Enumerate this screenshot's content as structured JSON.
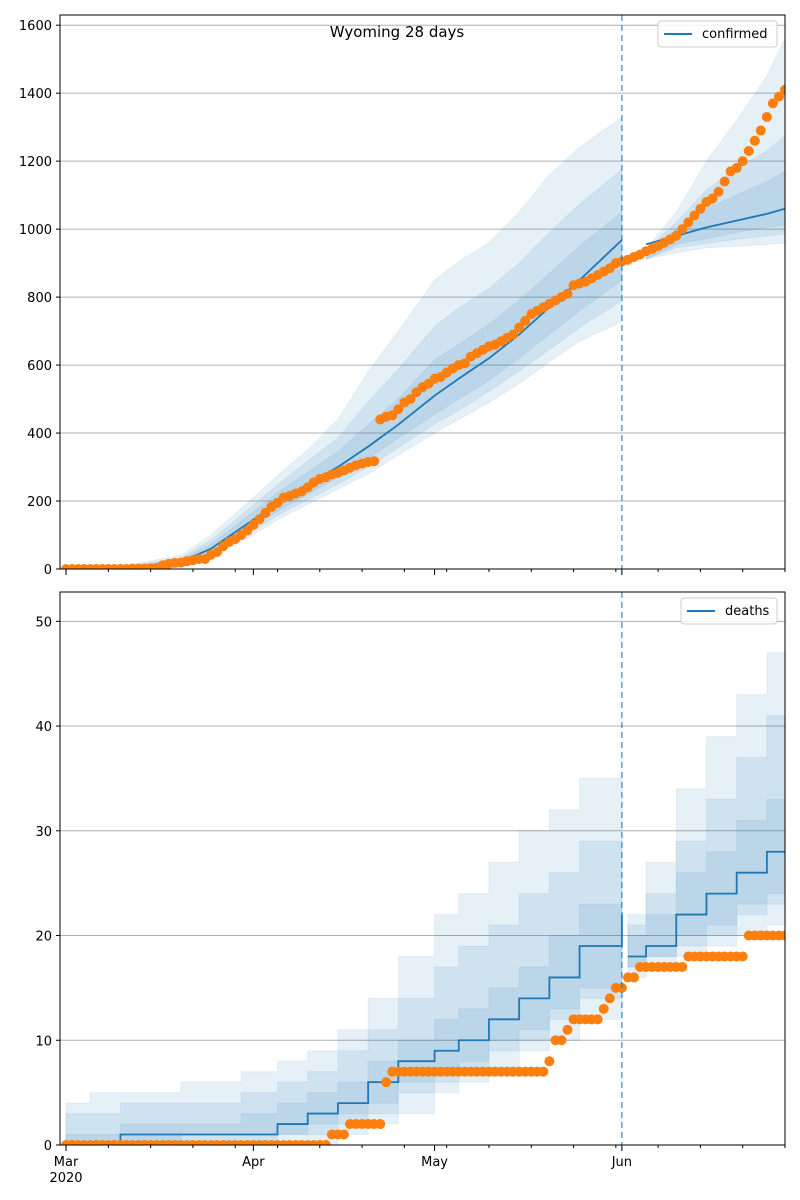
{
  "chart_data": [
    {
      "type": "line",
      "title": "Wyoming 28 days",
      "legend": "confirmed",
      "legend_position": "top-right",
      "grid": "horizontal",
      "x_range": [
        "2020-02-29",
        "2020-06-28"
      ],
      "ylim": [
        0,
        1630
      ],
      "yticks": [
        0,
        200,
        400,
        600,
        800,
        1000,
        1200,
        1400,
        1600
      ],
      "vline": "2020-06-01",
      "colors": {
        "model": "#1f77b4",
        "observed": "#ff7f0e",
        "vline": "#1f77b4"
      },
      "model": {
        "dates": [
          "2020-03-01",
          "2020-03-10",
          "2020-03-20",
          "2020-03-25",
          "2020-04-01",
          "2020-04-05",
          "2020-04-10",
          "2020-04-15",
          "2020-04-20",
          "2020-04-25",
          "2020-05-01",
          "2020-05-05",
          "2020-05-10",
          "2020-05-15",
          "2020-05-20",
          "2020-05-25",
          "2020-06-01",
          "2020-06-05",
          "2020-06-10",
          "2020-06-15",
          "2020-06-20",
          "2020-06-25",
          "2020-06-29"
        ],
        "median": [
          0,
          2,
          20,
          60,
          145,
          195,
          250,
          300,
          360,
          425,
          510,
          560,
          620,
          690,
          770,
          850,
          968,
          955,
          980,
          1005,
          1025,
          1045,
          1065
        ],
        "bands": [
          {
            "lower": [
              0,
              0,
              5,
              35,
              100,
              145,
              190,
              235,
              280,
              335,
              400,
              440,
              490,
              545,
              610,
              670,
              728,
              912,
              930,
              945,
              950,
              955,
              960
            ],
            "upper": [
              3,
              8,
              40,
              100,
              210,
              275,
              350,
              440,
              580,
              700,
              850,
              905,
              960,
              1050,
              1160,
              1240,
              1330,
              940,
              1050,
              1200,
              1320,
              1450,
              1600
            ]
          },
          {
            "lower": [
              0,
              0,
              9,
              43,
              112,
              158,
              204,
              250,
              300,
              357,
              427,
              466,
              523,
              583,
              646,
              710,
              790,
              912,
              945,
              958,
              970,
              980,
              988
            ],
            "upper": [
              2,
              6,
              32,
              85,
              188,
              248,
              317,
              385,
              492,
              587,
              714,
              768,
              825,
              900,
              990,
              1073,
              1175,
              938,
              1020,
              1115,
              1180,
              1230,
              1290
            ]
          },
          {
            "lower": [
              0,
              1,
              13,
              50,
              125,
              170,
              220,
              270,
              325,
              385,
              455,
              500,
              555,
              620,
              690,
              760,
              850,
              912,
              955,
              972,
              990,
              1005,
              1015
            ],
            "upper": [
              2,
              4,
              27,
              73,
              168,
              225,
              285,
              345,
              425,
              500,
              615,
              660,
              720,
              790,
              870,
              950,
              1050,
              935,
              1000,
              1060,
              1100,
              1140,
              1180
            ]
          }
        ]
      },
      "observed": {
        "dates": [
          "2020-03-01",
          "2020-03-02",
          "2020-03-03",
          "2020-03-04",
          "2020-03-05",
          "2020-03-06",
          "2020-03-07",
          "2020-03-08",
          "2020-03-09",
          "2020-03-10",
          "2020-03-11",
          "2020-03-12",
          "2020-03-13",
          "2020-03-14",
          "2020-03-15",
          "2020-03-16",
          "2020-03-17",
          "2020-03-18",
          "2020-03-19",
          "2020-03-20",
          "2020-03-21",
          "2020-03-22",
          "2020-03-23",
          "2020-03-24",
          "2020-03-25",
          "2020-03-26",
          "2020-03-27",
          "2020-03-28",
          "2020-03-29",
          "2020-03-30",
          "2020-03-31",
          "2020-04-01",
          "2020-04-02",
          "2020-04-03",
          "2020-04-04",
          "2020-04-05",
          "2020-04-06",
          "2020-04-07",
          "2020-04-08",
          "2020-04-09",
          "2020-04-10",
          "2020-04-11",
          "2020-04-12",
          "2020-04-13",
          "2020-04-14",
          "2020-04-15",
          "2020-04-16",
          "2020-04-17",
          "2020-04-18",
          "2020-04-19",
          "2020-04-20",
          "2020-04-21",
          "2020-04-22",
          "2020-04-23",
          "2020-04-24",
          "2020-04-25",
          "2020-04-26",
          "2020-04-27",
          "2020-04-28",
          "2020-04-29",
          "2020-04-30",
          "2020-05-01",
          "2020-05-02",
          "2020-05-03",
          "2020-05-04",
          "2020-05-05",
          "2020-05-06",
          "2020-05-07",
          "2020-05-08",
          "2020-05-09",
          "2020-05-10",
          "2020-05-11",
          "2020-05-12",
          "2020-05-13",
          "2020-05-14",
          "2020-05-15",
          "2020-05-16",
          "2020-05-17",
          "2020-05-18",
          "2020-05-19",
          "2020-05-20",
          "2020-05-21",
          "2020-05-22",
          "2020-05-23",
          "2020-05-24",
          "2020-05-25",
          "2020-05-26",
          "2020-05-27",
          "2020-05-28",
          "2020-05-29",
          "2020-05-30",
          "2020-05-31",
          "2020-06-01",
          "2020-06-02",
          "2020-06-03",
          "2020-06-04",
          "2020-06-05",
          "2020-06-06",
          "2020-06-07",
          "2020-06-08",
          "2020-06-09",
          "2020-06-10",
          "2020-06-11",
          "2020-06-12",
          "2020-06-13",
          "2020-06-14",
          "2020-06-15",
          "2020-06-16",
          "2020-06-17",
          "2020-06-18",
          "2020-06-19",
          "2020-06-20",
          "2020-06-21",
          "2020-06-22",
          "2020-06-23",
          "2020-06-24",
          "2020-06-25",
          "2020-06-26",
          "2020-06-27",
          "2020-06-28",
          "2020-06-29"
        ],
        "values": [
          0,
          0,
          0,
          0,
          0,
          0,
          0,
          0,
          0,
          0,
          0,
          1,
          1,
          1,
          2,
          3,
          11,
          15,
          18,
          19,
          23,
          26,
          29,
          29,
          42,
          50,
          67,
          80,
          88,
          100,
          113,
          130,
          146,
          165,
          183,
          195,
          210,
          215,
          222,
          228,
          240,
          255,
          265,
          270,
          278,
          283,
          290,
          298,
          305,
          310,
          315,
          317,
          440,
          448,
          452,
          470,
          490,
          500,
          520,
          535,
          545,
          560,
          565,
          578,
          590,
          600,
          605,
          625,
          635,
          645,
          655,
          660,
          670,
          680,
          690,
          710,
          730,
          750,
          760,
          770,
          780,
          790,
          800,
          810,
          835,
          840,
          845,
          855,
          865,
          875,
          885,
          900,
          905,
          910,
          918,
          925,
          935,
          942,
          950,
          960,
          970,
          980,
          1000,
          1020,
          1040,
          1060,
          1080,
          1090,
          1110,
          1140,
          1170,
          1180,
          1200,
          1230,
          1260,
          1290,
          1330,
          1370,
          1390,
          1410,
          1450
        ]
      }
    },
    {
      "type": "line",
      "legend": "deaths",
      "legend_position": "top-right",
      "grid": "horizontal",
      "x_range": [
        "2020-02-29",
        "2020-06-28"
      ],
      "ylim": [
        0,
        52.8
      ],
      "yticks": [
        0,
        10,
        20,
        30,
        40,
        50
      ],
      "xticks": [
        {
          "date": "2020-03-01",
          "label": "Mar",
          "sublabel": "2020"
        },
        {
          "date": "2020-04-01",
          "label": "Apr"
        },
        {
          "date": "2020-05-01",
          "label": "May"
        },
        {
          "date": "2020-06-01",
          "label": "Jun"
        }
      ],
      "vline": "2020-06-01",
      "colors": {
        "model": "#1f77b4",
        "observed": "#ff7f0e",
        "vline": "#1f77b4"
      },
      "model": {
        "dates": [
          "2020-03-01",
          "2020-03-05",
          "2020-03-10",
          "2020-03-20",
          "2020-03-30",
          "2020-04-01",
          "2020-04-05",
          "2020-04-10",
          "2020-04-15",
          "2020-04-20",
          "2020-04-25",
          "2020-05-01",
          "2020-05-05",
          "2020-05-10",
          "2020-05-15",
          "2020-05-20",
          "2020-05-25",
          "2020-06-01",
          "2020-06-02",
          "2020-06-05",
          "2020-06-10",
          "2020-06-15",
          "2020-06-20",
          "2020-06-25",
          "2020-06-29"
        ],
        "median": [
          0,
          0,
          1,
          1,
          1,
          1,
          2,
          3,
          4,
          6,
          8,
          9,
          10,
          12,
          14,
          16,
          19,
          22,
          18,
          19,
          22,
          24,
          26,
          28,
          29
        ],
        "bands": [
          {
            "lower": [
              0,
              0,
              0,
              0,
              0,
              0,
              0,
              0,
              1,
              2,
              3,
              5,
              6,
              7,
              9,
              10,
              12,
              14,
              16,
              17,
              18,
              19,
              20,
              21,
              22
            ],
            "upper": [
              4,
              5,
              5,
              6,
              7,
              7,
              8,
              9,
              11,
              14,
              18,
              22,
              24,
              27,
              30,
              32,
              35,
              36,
              22,
              27,
              34,
              39,
              43,
              47,
              51
            ]
          },
          {
            "lower": [
              0,
              0,
              0,
              0,
              0,
              0,
              1,
              1,
              2,
              3,
              5,
              6,
              7,
              9,
              10,
              12,
              14,
              16,
              17,
              18,
              19,
              20,
              22,
              23,
              24
            ],
            "upper": [
              3,
              3,
              4,
              4,
              5,
              5,
              6,
              7,
              9,
              11,
              14,
              17,
              19,
              21,
              24,
              26,
              29,
              31,
              21,
              24,
              29,
              33,
              37,
              41,
              44
            ]
          },
          {
            "lower": [
              0,
              0,
              0,
              1,
              1,
              1,
              1,
              2,
              3,
              4,
              6,
              7,
              8,
              10,
              11,
              13,
              15,
              18,
              17,
              18,
              20,
              21,
              23,
              24,
              25
            ],
            "upper": [
              1,
              1,
              2,
              2,
              3,
              3,
              4,
              5,
              6,
              8,
              10,
              12,
              13,
              15,
              17,
              20,
              23,
              26,
              20,
              22,
              26,
              28,
              31,
              33,
              35
            ]
          }
        ]
      },
      "observed": {
        "dates": [
          "2020-03-01",
          "2020-03-02",
          "2020-03-03",
          "2020-03-04",
          "2020-03-05",
          "2020-03-06",
          "2020-03-07",
          "2020-03-08",
          "2020-03-09",
          "2020-03-10",
          "2020-03-11",
          "2020-03-12",
          "2020-03-13",
          "2020-03-14",
          "2020-03-15",
          "2020-03-16",
          "2020-03-17",
          "2020-03-18",
          "2020-03-19",
          "2020-03-20",
          "2020-03-21",
          "2020-03-22",
          "2020-03-23",
          "2020-03-24",
          "2020-03-25",
          "2020-03-26",
          "2020-03-27",
          "2020-03-28",
          "2020-03-29",
          "2020-03-30",
          "2020-03-31",
          "2020-04-01",
          "2020-04-02",
          "2020-04-03",
          "2020-04-04",
          "2020-04-05",
          "2020-04-06",
          "2020-04-07",
          "2020-04-08",
          "2020-04-09",
          "2020-04-10",
          "2020-04-11",
          "2020-04-12",
          "2020-04-13",
          "2020-04-14",
          "2020-04-15",
          "2020-04-16",
          "2020-04-17",
          "2020-04-18",
          "2020-04-19",
          "2020-04-20",
          "2020-04-21",
          "2020-04-22",
          "2020-04-23",
          "2020-04-24",
          "2020-04-25",
          "2020-04-26",
          "2020-04-27",
          "2020-04-28",
          "2020-04-29",
          "2020-04-30",
          "2020-05-01",
          "2020-05-02",
          "2020-05-03",
          "2020-05-04",
          "2020-05-05",
          "2020-05-06",
          "2020-05-07",
          "2020-05-08",
          "2020-05-09",
          "2020-05-10",
          "2020-05-11",
          "2020-05-12",
          "2020-05-13",
          "2020-05-14",
          "2020-05-15",
          "2020-05-16",
          "2020-05-17",
          "2020-05-18",
          "2020-05-19",
          "2020-05-20",
          "2020-05-21",
          "2020-05-22",
          "2020-05-23",
          "2020-05-24",
          "2020-05-25",
          "2020-05-26",
          "2020-05-27",
          "2020-05-28",
          "2020-05-29",
          "2020-05-30",
          "2020-05-31",
          "2020-06-01",
          "2020-06-02",
          "2020-06-03",
          "2020-06-04",
          "2020-06-05",
          "2020-06-06",
          "2020-06-07",
          "2020-06-08",
          "2020-06-09",
          "2020-06-10",
          "2020-06-11",
          "2020-06-12",
          "2020-06-13",
          "2020-06-14",
          "2020-06-15",
          "2020-06-16",
          "2020-06-17",
          "2020-06-18",
          "2020-06-19",
          "2020-06-20",
          "2020-06-21",
          "2020-06-22",
          "2020-06-23",
          "2020-06-24",
          "2020-06-25",
          "2020-06-26",
          "2020-06-27",
          "2020-06-28",
          "2020-06-29"
        ],
        "values": [
          0,
          0,
          0,
          0,
          0,
          0,
          0,
          0,
          0,
          0,
          0,
          0,
          0,
          0,
          0,
          0,
          0,
          0,
          0,
          0,
          0,
          0,
          0,
          0,
          0,
          0,
          0,
          0,
          0,
          0,
          0,
          0,
          0,
          0,
          0,
          0,
          0,
          0,
          0,
          0,
          0,
          0,
          0,
          0,
          1,
          1,
          1,
          2,
          2,
          2,
          2,
          2,
          2,
          6,
          7,
          7,
          7,
          7,
          7,
          7,
          7,
          7,
          7,
          7,
          7,
          7,
          7,
          7,
          7,
          7,
          7,
          7,
          7,
          7,
          7,
          7,
          7,
          7,
          7,
          7,
          8,
          10,
          10,
          11,
          12,
          12,
          12,
          12,
          12,
          13,
          14,
          15,
          15,
          16,
          16,
          17,
          17,
          17,
          17,
          17,
          17,
          17,
          17,
          18,
          18,
          18,
          18,
          18,
          18,
          18,
          18,
          18,
          18,
          20,
          20,
          20,
          20,
          20,
          20,
          20,
          20
        ]
      }
    }
  ]
}
